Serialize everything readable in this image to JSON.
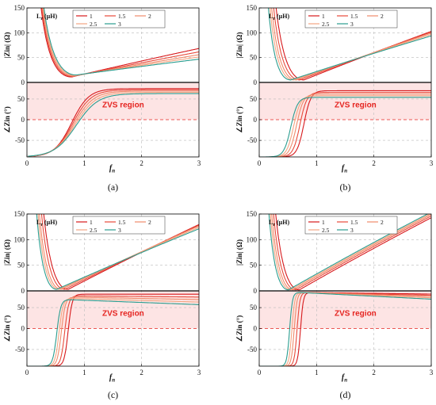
{
  "figure": {
    "zvs_color": "#e52420",
    "zvs_band_color": "#fde4e4",
    "legend_title": "L",
    "legend_title_sub": "r",
    "legend_title_unit": "(μH)",
    "x_label_main": "f",
    "x_label_sub": "n",
    "mag_y_label": "|Zin| (Ω)",
    "phase_y_label": "∠Zin (°)",
    "series_colors": [
      "#d7191c",
      "#e84a3a",
      "#f08a6b",
      "#f4a582",
      "#7fbf8a",
      "#2a9d8f"
    ]
  },
  "chart_data": [
    {
      "type": "line",
      "caption": "(a)",
      "zvs_label": "ZVS region",
      "xlim": [
        0,
        3
      ],
      "xticks": [
        "0",
        "1",
        "2",
        "3"
      ],
      "magnitude": {
        "ylim": [
          0,
          150
        ],
        "yticks": [
          "0",
          "50",
          "100",
          "150"
        ]
      },
      "phase": {
        "ylim": [
          -90,
          90
        ],
        "yticks": [
          "-50",
          "0",
          "50"
        ],
        "zvs_range": [
          0,
          90
        ]
      },
      "series": [
        {
          "name": "1",
          "mag": {
            "xmin": 0.78,
            "ymin": 11,
            "slope": 27,
            "k": 160
          },
          "phase": {
            "x0": 0.78,
            "w": 0.15,
            "pmax": 75,
            "decay": 0
          }
        },
        {
          "name": "1.5",
          "mag": {
            "xmin": 0.8,
            "ymin": 12,
            "slope": 23.5,
            "k": 160
          },
          "phase": {
            "x0": 0.8,
            "w": 0.16,
            "pmax": 72,
            "decay": 0
          }
        },
        {
          "name": "2",
          "mag": {
            "xmin": 0.82,
            "ymin": 13,
            "slope": 20.5,
            "k": 160
          },
          "phase": {
            "x0": 0.82,
            "w": 0.17,
            "pmax": 69,
            "decay": 0
          }
        },
        {
          "name": "2.5",
          "mag": {
            "xmin": 0.84,
            "ymin": 14,
            "slope": 18,
            "k": 160
          },
          "phase": {
            "x0": 0.84,
            "w": 0.18,
            "pmax": 66,
            "decay": 0
          }
        },
        {
          "name": "3",
          "mag": {
            "xmin": 0.86,
            "ymin": 15,
            "slope": 15.5,
            "k": 160
          },
          "phase": {
            "x0": 0.86,
            "w": 0.19,
            "pmax": 63,
            "decay": 0
          }
        }
      ]
    },
    {
      "type": "line",
      "caption": "(b)",
      "zvs_label": "ZVS region",
      "xlim": [
        0,
        3
      ],
      "xticks": [
        "0",
        "1",
        "2",
        "3"
      ],
      "magnitude": {
        "ylim": [
          0,
          150
        ],
        "yticks": [
          "0",
          "50",
          "100",
          "150"
        ]
      },
      "phase": {
        "ylim": [
          -90,
          90
        ],
        "yticks": [
          "-50",
          "0",
          "50"
        ],
        "zvs_range": [
          0,
          90
        ]
      },
      "series": [
        {
          "name": "1",
          "mag": {
            "xmin": 0.78,
            "ymin": 5,
            "slope": 46,
            "k": 230
          },
          "phase": {
            "x0": 0.78,
            "w": 0.06,
            "pmax": 70,
            "decay": 0
          }
        },
        {
          "name": "1.5",
          "mag": {
            "xmin": 0.71,
            "ymin": 5,
            "slope": 44,
            "k": 230
          },
          "phase": {
            "x0": 0.71,
            "w": 0.06,
            "pmax": 66,
            "decay": 0
          }
        },
        {
          "name": "2",
          "mag": {
            "xmin": 0.65,
            "ymin": 5,
            "slope": 42,
            "k": 230
          },
          "phase": {
            "x0": 0.65,
            "w": 0.06,
            "pmax": 62,
            "decay": 0
          }
        },
        {
          "name": "2.5",
          "mag": {
            "xmin": 0.6,
            "ymin": 5,
            "slope": 40,
            "k": 230
          },
          "phase": {
            "x0": 0.6,
            "w": 0.06,
            "pmax": 58,
            "decay": 0
          }
        },
        {
          "name": "3",
          "mag": {
            "xmin": 0.55,
            "ymin": 5,
            "slope": 38,
            "k": 230
          },
          "phase": {
            "x0": 0.55,
            "w": 0.06,
            "pmax": 54,
            "decay": 0
          }
        }
      ]
    },
    {
      "type": "line",
      "caption": "(c)",
      "zvs_label": "ZVS region",
      "xlim": [
        0,
        3
      ],
      "xticks": [
        "0",
        "1",
        "2",
        "3"
      ],
      "magnitude": {
        "ylim": [
          0,
          150
        ],
        "yticks": [
          "0",
          "50",
          "100",
          "150"
        ]
      },
      "phase": {
        "ylim": [
          -90,
          90
        ],
        "yticks": [
          "-50",
          "0",
          "50"
        ],
        "zvs_range": [
          0,
          90
        ]
      },
      "series": [
        {
          "name": "1",
          "mag": {
            "xmin": 0.72,
            "ymin": 3,
            "slope": 58,
            "k": 300
          },
          "phase": {
            "x0": 0.72,
            "w": 0.035,
            "pmax": 82,
            "decay": 0
          }
        },
        {
          "name": "1.5",
          "mag": {
            "xmin": 0.66,
            "ymin": 3,
            "slope": 56,
            "k": 300
          },
          "phase": {
            "x0": 0.66,
            "w": 0.035,
            "pmax": 78,
            "decay": 3
          }
        },
        {
          "name": "2",
          "mag": {
            "xmin": 0.6,
            "ymin": 3,
            "slope": 54,
            "k": 300
          },
          "phase": {
            "x0": 0.6,
            "w": 0.035,
            "pmax": 75,
            "decay": 6
          }
        },
        {
          "name": "2.5",
          "mag": {
            "xmin": 0.56,
            "ymin": 3,
            "slope": 52,
            "k": 300
          },
          "phase": {
            "x0": 0.56,
            "w": 0.035,
            "pmax": 72,
            "decay": 9
          }
        },
        {
          "name": "3",
          "mag": {
            "xmin": 0.52,
            "ymin": 3,
            "slope": 50,
            "k": 300
          },
          "phase": {
            "x0": 0.52,
            "w": 0.035,
            "pmax": 69,
            "decay": 12
          }
        }
      ]
    },
    {
      "type": "line",
      "caption": "(d)",
      "zvs_label": "ZVS region",
      "xlim": [
        0,
        3
      ],
      "xticks": [
        "0",
        "1",
        "2",
        "3"
      ],
      "magnitude": {
        "ylim": [
          0,
          150
        ],
        "yticks": [
          "0",
          "50",
          "100",
          "150"
        ]
      },
      "phase": {
        "ylim": [
          -90,
          90
        ],
        "yticks": [
          "-50",
          "0",
          "50"
        ],
        "zvs_range": [
          0,
          90
        ]
      },
      "series": [
        {
          "name": "1",
          "mag": {
            "xmin": 0.7,
            "ymin": 2,
            "slope": 64,
            "k": 320
          },
          "phase": {
            "x0": 0.72,
            "w": 0.025,
            "pmax": 86,
            "decay": 4
          }
        },
        {
          "name": "1.5",
          "mag": {
            "xmin": 0.64,
            "ymin": 2,
            "slope": 64,
            "k": 320
          },
          "phase": {
            "x0": 0.66,
            "w": 0.025,
            "pmax": 86,
            "decay": 7
          }
        },
        {
          "name": "2",
          "mag": {
            "xmin": 0.59,
            "ymin": 2,
            "slope": 64,
            "k": 320
          },
          "phase": {
            "x0": 0.61,
            "w": 0.025,
            "pmax": 86,
            "decay": 10
          }
        },
        {
          "name": "2.5",
          "mag": {
            "xmin": 0.55,
            "ymin": 2,
            "slope": 64,
            "k": 320
          },
          "phase": {
            "x0": 0.57,
            "w": 0.025,
            "pmax": 86,
            "decay": 13
          }
        },
        {
          "name": "3",
          "mag": {
            "xmin": 0.51,
            "ymin": 2,
            "slope": 64,
            "k": 320
          },
          "phase": {
            "x0": 0.53,
            "w": 0.025,
            "pmax": 86,
            "decay": 16
          }
        }
      ]
    }
  ]
}
